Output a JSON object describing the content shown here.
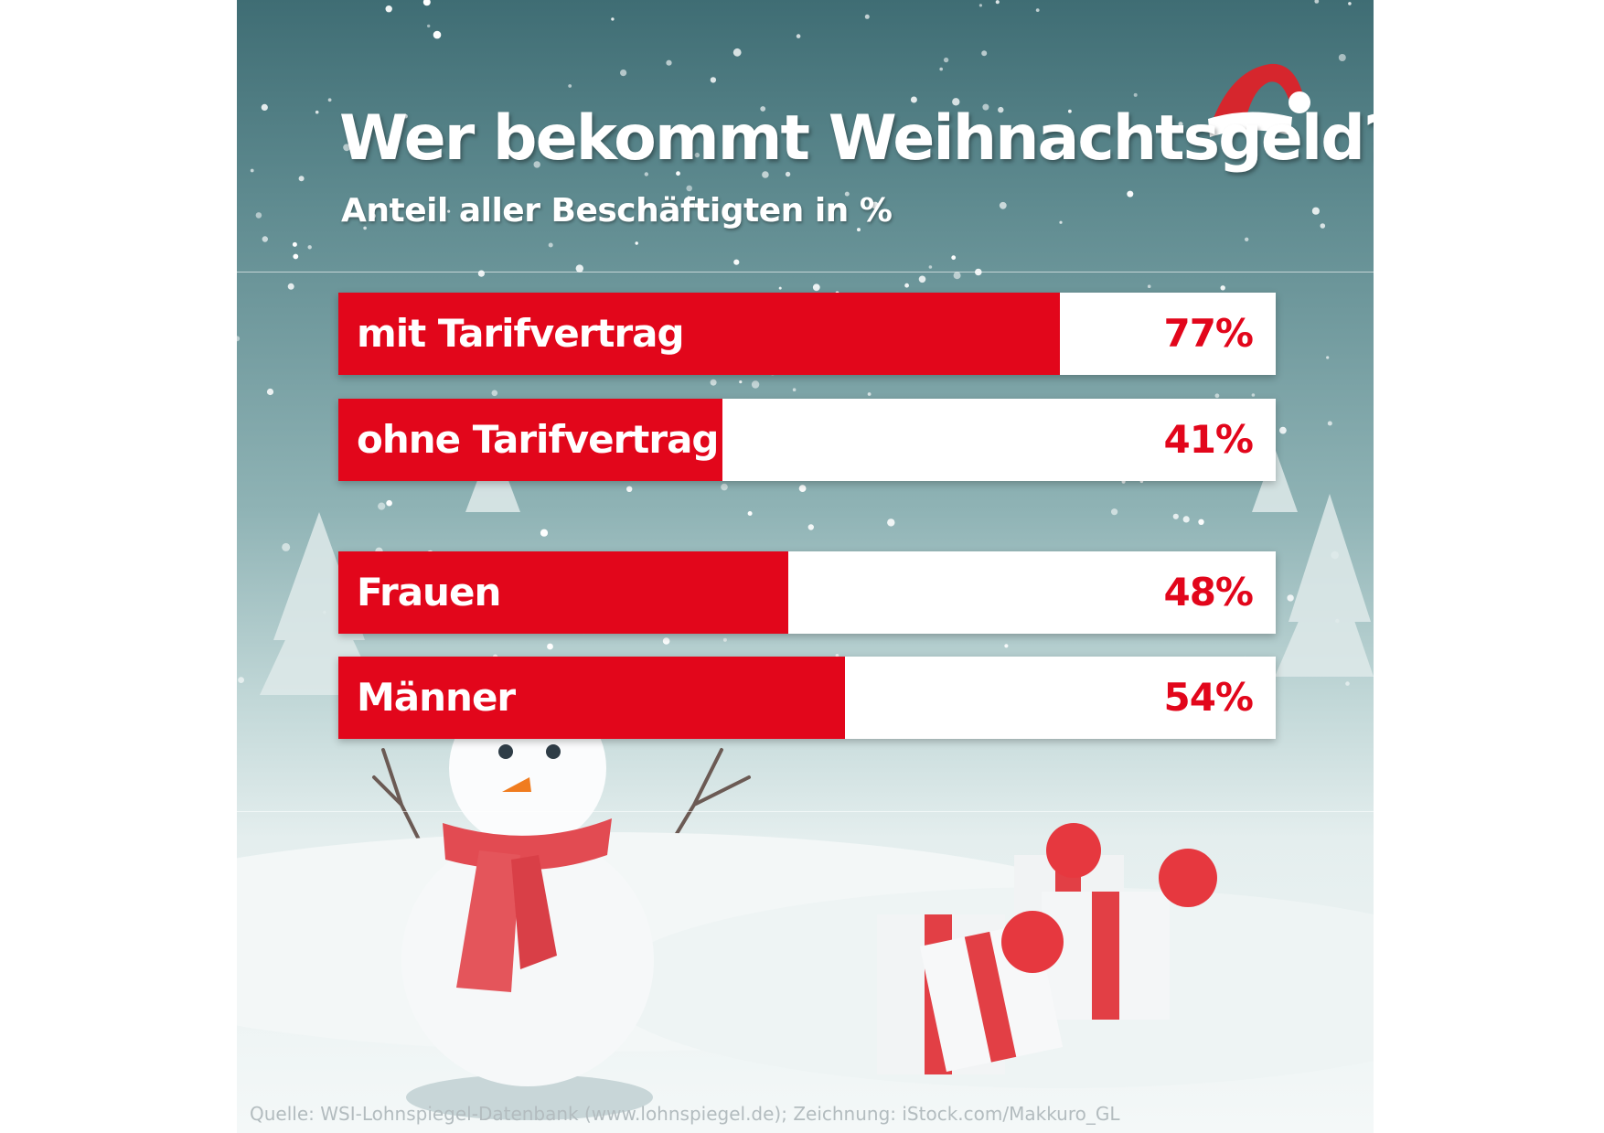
{
  "header": {
    "title": "Wer bekommt Weihnachtsgeld?",
    "subtitle": "Anteil aller Beschäftigten in %"
  },
  "chart_data": {
    "type": "bar",
    "orientation": "horizontal",
    "title": "Wer bekommt Weihnachtsgeld?",
    "subtitle": "Anteil aller Beschäftigten in %",
    "xlabel": "",
    "ylabel": "",
    "xlim": [
      0,
      100
    ],
    "grid": false,
    "legend": "none",
    "categories": [
      "mit Tarifvertrag",
      "ohne Tarifvertrag",
      "Frauen",
      "Männer"
    ],
    "values": [
      77,
      41,
      48,
      54
    ],
    "value_labels": [
      "77%",
      "41%",
      "48%",
      "54%"
    ]
  },
  "footer": {
    "source": "Quelle: WSI-Lohnspiegel-Datenbank (www.lohnspiegel.de); Zeichnung: iStock.com/Makkuro_GL"
  },
  "colors": {
    "bar": "#e2061b",
    "track": "#ffffff",
    "label_on_bar": "#ffffff",
    "value_label": "#e2061b",
    "title": "#ffffff"
  },
  "icons": [
    "santa-hat-icon",
    "snowman-icon",
    "gift-box-icon",
    "winter-tree-icon",
    "snowflake-icon"
  ]
}
